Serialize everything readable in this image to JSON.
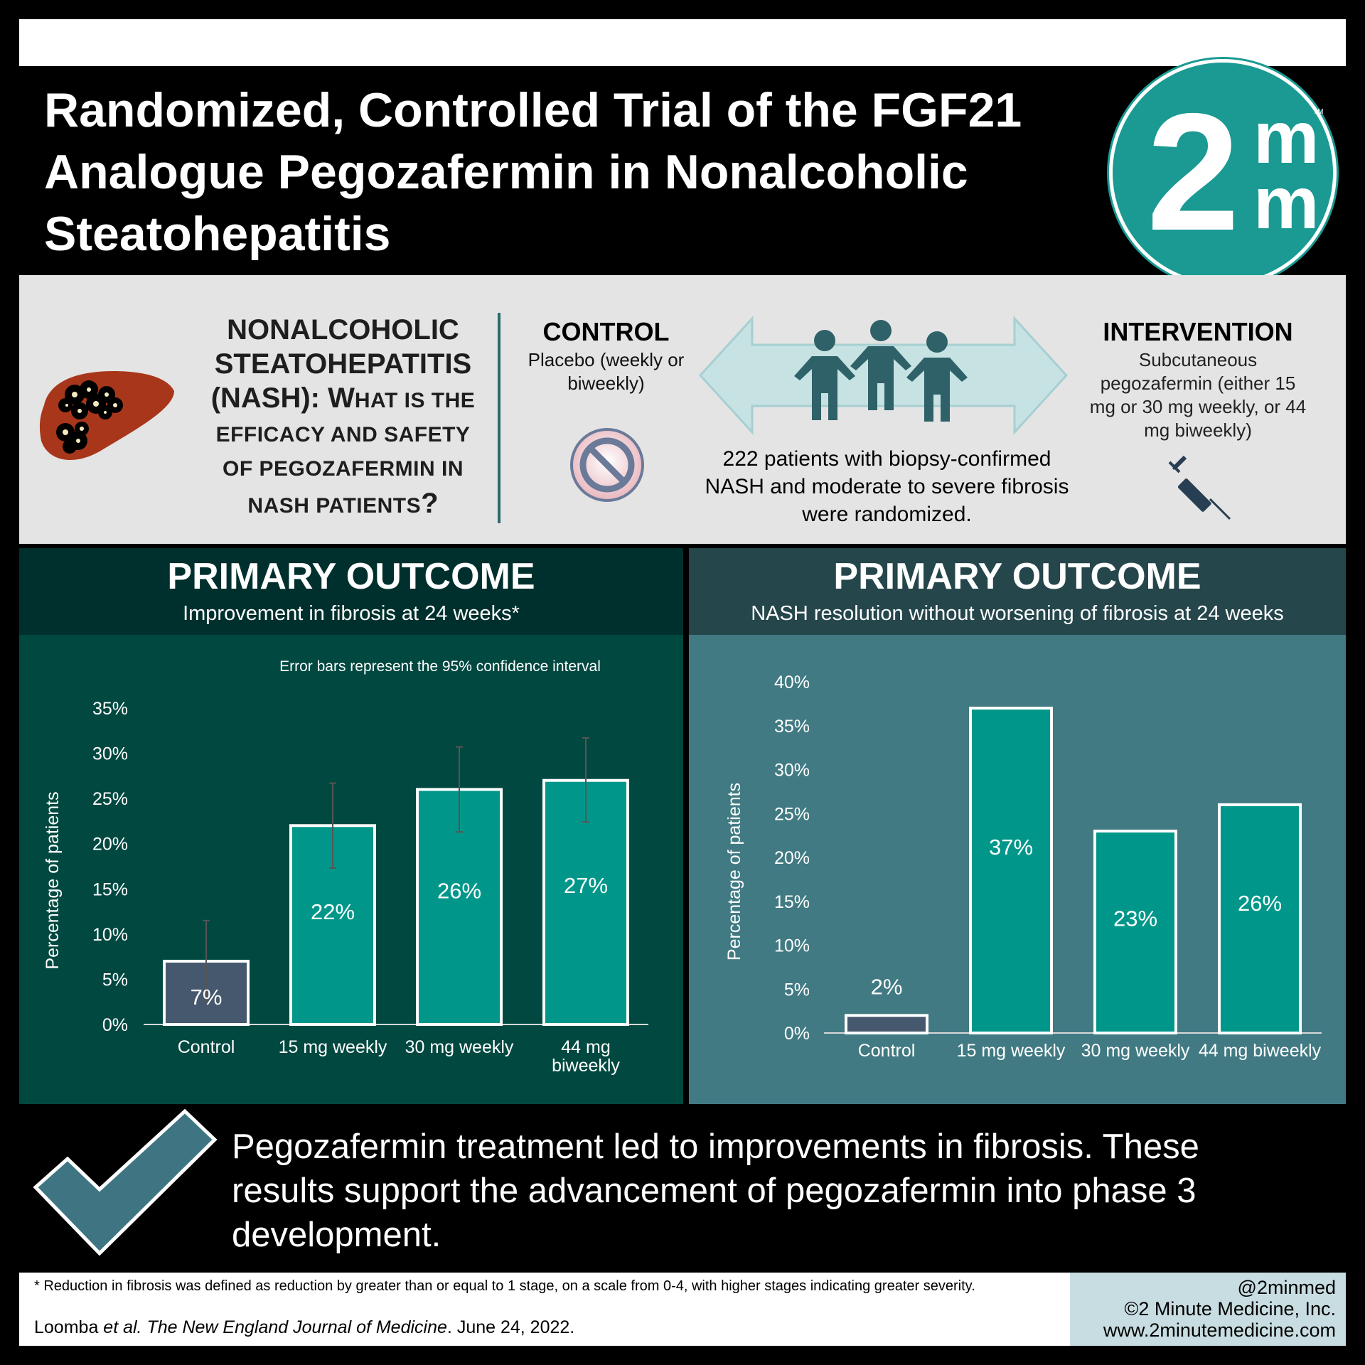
{
  "header": {
    "title": "Randomized, Controlled Trial of the FGF21 Analogue Pegozafermin in Nonalcoholic Steatohepatitis",
    "logo_text": "2mm"
  },
  "question": {
    "line1": "NONALCOHOLIC",
    "line2": "STEATOHEPATITIS",
    "line3a": "(NASH): W",
    "line3b": "HAT IS THE",
    "line4": "EFFICACY AND SAFETY",
    "line5": "OF PEGOZAFERMIN IN",
    "line6a": "NASH PATIENTS",
    "line6b": "?"
  },
  "control": {
    "heading": "CONTROL",
    "text": "Placebo (weekly or biweekly)"
  },
  "intervention": {
    "heading": "INTERVENTION",
    "text": "Subcutaneous pegozafermin (either 15 mg or 30 mg weekly, or 44 mg biweekly)"
  },
  "patients": {
    "text": "222 patients with biopsy-confirmed NASH and moderate to severe fibrosis were randomized."
  },
  "left_section": {
    "title": "PRIMARY OUTCOME",
    "subtitle": "Improvement in fibrosis at 24 weeks*"
  },
  "right_section": {
    "title": "PRIMARY OUTCOME",
    "subtitle": "NASH resolution without worsening of fibrosis at 24 weeks"
  },
  "chart_data": [
    {
      "type": "bar",
      "annotation": "Error bars represent the 95% confidence interval",
      "categories": [
        "Control",
        "15 mg weekly",
        "30 mg weekly",
        "44 mg biweekly"
      ],
      "category_labels": [
        [
          "Control"
        ],
        [
          "15 mg weekly"
        ],
        [
          "30 mg weekly"
        ],
        [
          "44 mg",
          "biweekly"
        ]
      ],
      "values": [
        7,
        22,
        26,
        27
      ],
      "data_labels": [
        "7%",
        "22%",
        "26%",
        "27%"
      ],
      "error_low": [
        2.5,
        17.3,
        21.3,
        22.4
      ],
      "error_high": [
        11.5,
        26.7,
        30.7,
        31.7
      ],
      "ylabel": "Percentage of patients",
      "ylim": [
        0,
        35
      ],
      "yticks": [
        "0%",
        "5%",
        "10%",
        "15%",
        "20%",
        "25%",
        "30%",
        "35%"
      ],
      "bar_colors": [
        "#46586d",
        "#00978a",
        "#00978a",
        "#00978a"
      ]
    },
    {
      "type": "bar",
      "categories": [
        "Control",
        "15 mg weekly",
        "30 mg weekly",
        "44 mg biweekly"
      ],
      "category_labels": [
        [
          "Control"
        ],
        [
          "15 mg weekly"
        ],
        [
          "30 mg weekly"
        ],
        [
          "44 mg biweekly"
        ]
      ],
      "values": [
        2,
        37,
        23,
        26
      ],
      "data_labels": [
        "2%",
        "37%",
        "23%",
        "26%"
      ],
      "ylabel": "Percentage of patients",
      "ylim": [
        0,
        40
      ],
      "yticks": [
        "0%",
        "5%",
        "10%",
        "15%",
        "20%",
        "25%",
        "30%",
        "35%",
        "40%"
      ],
      "bar_colors": [
        "#46586d",
        "#00978a",
        "#00978a",
        "#00978a"
      ]
    }
  ],
  "conclusion": {
    "text": "Pegozafermin treatment led to improvements in fibrosis. These results support the advancement of pegozafermin into phase 3 development."
  },
  "footer": {
    "note": "* Reduction in fibrosis was defined as reduction by greater than or equal to 1 stage, on a scale from 0-4, with higher stages indicating greater severity.",
    "cite_authors": "Loomba ",
    "cite_etal": "et al.",
    "cite_journal": " The New England Journal of Medicine",
    "cite_date": ". June 24, 2022.",
    "handle": "@2minmed",
    "copyright": "©2 Minute Medicine, Inc.",
    "website": "www.2minutemedicine.com"
  },
  "colors": {
    "teal_bar": "#00978a",
    "control_bar": "#46586d",
    "left_panel": "#004840",
    "right_panel": "#417a83",
    "logo_teal": "#1a9a93"
  }
}
